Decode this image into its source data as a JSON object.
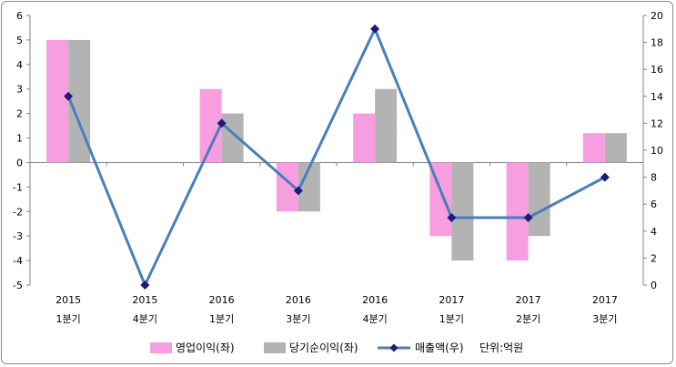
{
  "chart_data": {
    "type": "bar",
    "categories": [
      [
        "2015",
        "1분기"
      ],
      [
        "2015",
        "4분기"
      ],
      [
        "2016",
        "1분기"
      ],
      [
        "2016",
        "3분기"
      ],
      [
        "2016",
        "4분기"
      ],
      [
        "2017",
        "1분기"
      ],
      [
        "2017",
        "2분기"
      ],
      [
        "2017",
        "3분기"
      ]
    ],
    "series": [
      {
        "name": "영업이익(좌)",
        "type": "bar",
        "axis": "left",
        "color": "#f79ee0",
        "values": [
          5,
          0,
          3,
          -2,
          2,
          -3,
          -4,
          1.2
        ]
      },
      {
        "name": "당기순이익(좌)",
        "type": "bar",
        "axis": "left",
        "color": "#b3b3b3",
        "values": [
          5,
          0,
          2,
          -2,
          3,
          -4,
          -3,
          1.2
        ]
      },
      {
        "name": "매출액(우)",
        "type": "line",
        "axis": "right",
        "color": "#4a7ebb",
        "marker_color": "#1f1a7a",
        "values": [
          14,
          0,
          12,
          7,
          19,
          5,
          5,
          8
        ]
      }
    ],
    "y_left": {
      "min": -5,
      "max": 6,
      "ticks": [
        "-5",
        "-4",
        "-3",
        "-2",
        "-1",
        "0",
        "1",
        "2",
        "3",
        "4",
        "5",
        "6"
      ]
    },
    "y_right": {
      "min": 0,
      "max": 20,
      "ticks": [
        "0",
        "2",
        "4",
        "6",
        "8",
        "10",
        "12",
        "14",
        "16",
        "18",
        "20"
      ]
    },
    "legend": {
      "position": "bottom",
      "unit_note": "단위:억원"
    },
    "grid": false
  }
}
